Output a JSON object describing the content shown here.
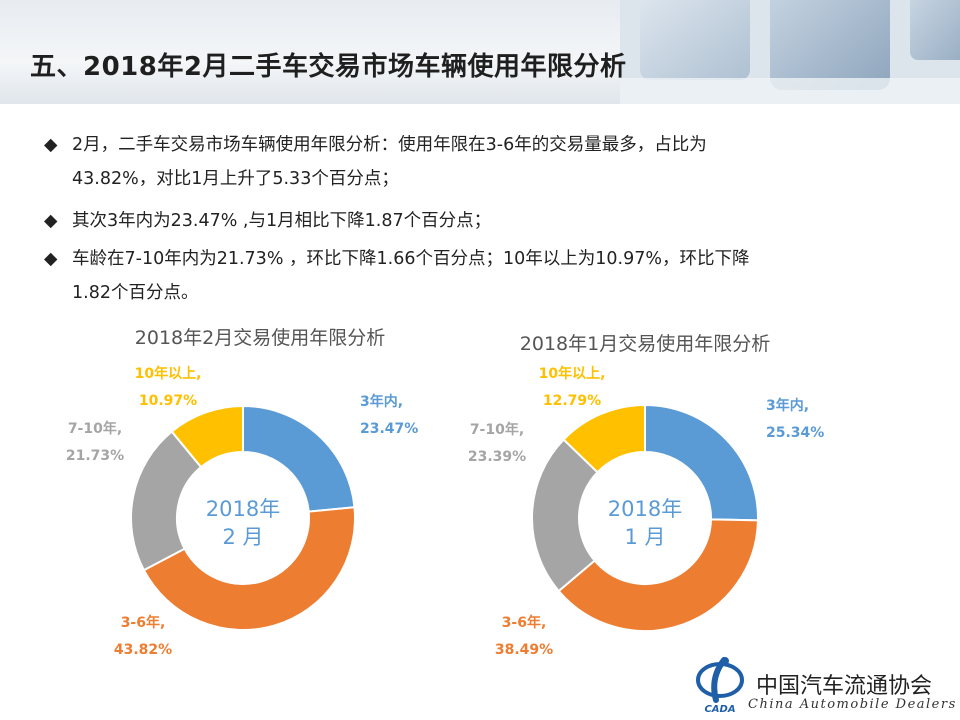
{
  "title": "五、2018年2月二手车交易市场车辆使用年限分析",
  "bullets": [
    {
      "mark": "◆",
      "line1": "2月，二手车交易市场车辆使用年限分析：使用年限在3-6年的交易量最多，占比为",
      "line2": "43.82%，对比1月上升了5.33个百分点；"
    },
    {
      "mark": "◆",
      "line1": "其次3年内为23.47% ,与1月相比下降1.87个百分点；"
    },
    {
      "mark": "◆",
      "line1": "车龄在7-10年内为21.73% ，环比下降1.66个百分点；10年以上为10.97%，环比下降",
      "line2": "1.82个百分点。"
    }
  ],
  "chart_data": [
    {
      "type": "pie",
      "title": "2018年2月交易使用年限分析",
      "center_label": [
        "2018年",
        "2 月"
      ],
      "slices": [
        {
          "name": "3年内",
          "value": 23.47,
          "label": "23.47%",
          "color": "#5b9bd5"
        },
        {
          "name": "3-6年",
          "value": 43.82,
          "label": "43.82%",
          "color": "#ed7d31"
        },
        {
          "name": "7-10年",
          "value": 21.73,
          "label": "21.73%",
          "color": "#a5a5a5"
        },
        {
          "name": "10年以上",
          "value": 10.97,
          "label": "10.97%",
          "color": "#ffc000"
        }
      ]
    },
    {
      "type": "pie",
      "title": "2018年1月交易使用年限分析",
      "center_label": [
        "2018年",
        "1 月"
      ],
      "slices": [
        {
          "name": "3年内",
          "value": 25.34,
          "label": "25.34%",
          "color": "#5b9bd5"
        },
        {
          "name": "3-6年",
          "value": 38.49,
          "label": "38.49%",
          "color": "#ed7d31"
        },
        {
          "name": "7-10年",
          "value": 23.39,
          "label": "23.39%",
          "color": "#a5a5a5"
        },
        {
          "name": "10年以上",
          "value": 12.79,
          "label": "12.79%",
          "color": "#ffc000"
        }
      ]
    }
  ],
  "footer": {
    "org_cn": "中国汽车流通协会",
    "org_en": "China  Automobile  Dealers",
    "logo_text": "CADA"
  }
}
